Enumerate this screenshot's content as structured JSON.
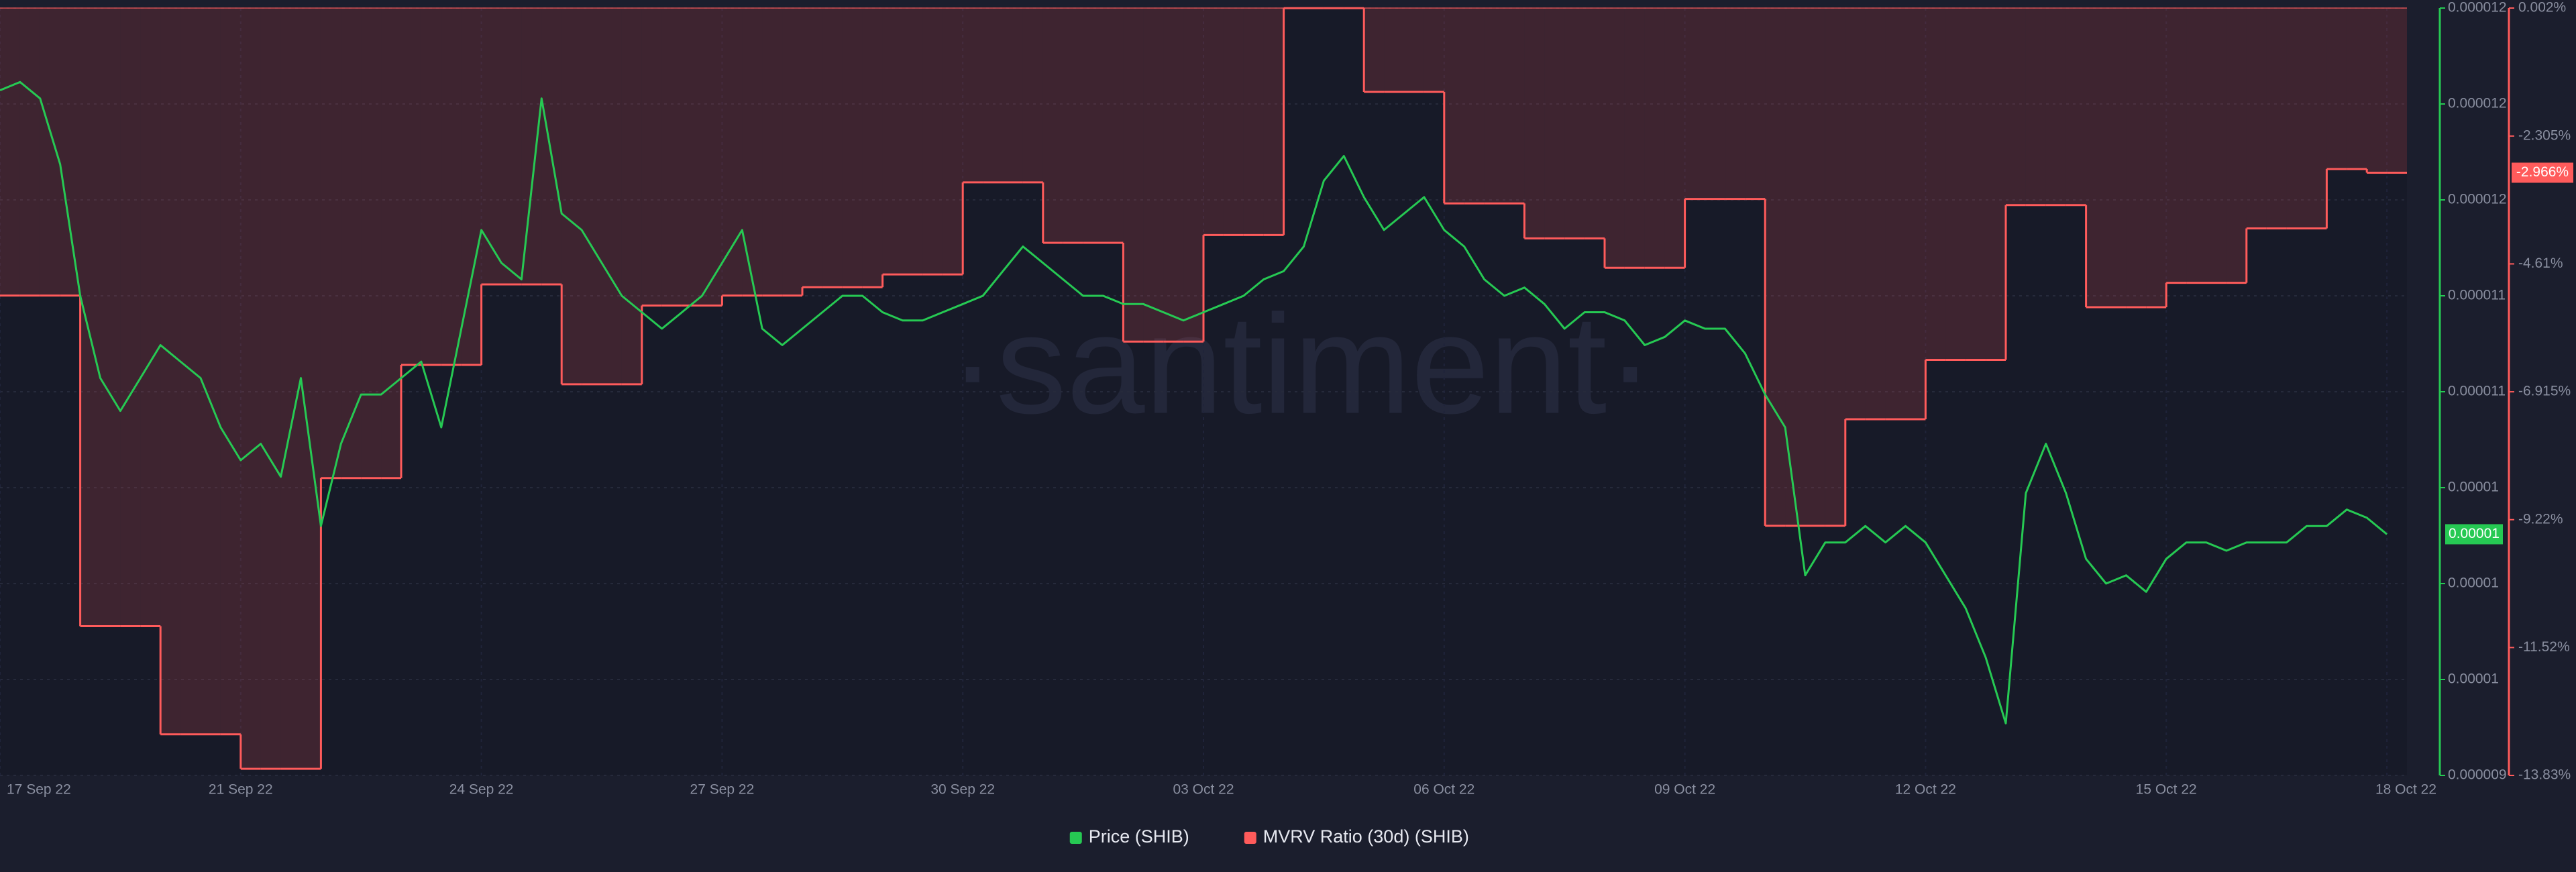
{
  "chart_data": {
    "type": "line-step",
    "watermark": "·santiment·",
    "grid": true,
    "categories": [
      "17 Sep 22",
      null,
      null,
      null,
      null,
      null,
      null,
      null,
      null,
      null,
      null,
      null,
      "21 Sep 22",
      null,
      null,
      null,
      null,
      null,
      null,
      null,
      null,
      null,
      null,
      null,
      "24 Sep 22",
      null,
      null,
      null,
      null,
      null,
      null,
      null,
      null,
      null,
      null,
      null,
      "27 Sep 22",
      null,
      null,
      null,
      null,
      null,
      null,
      null,
      null,
      null,
      null,
      null,
      "30 Sep 22",
      null,
      null,
      null,
      null,
      null,
      null,
      null,
      null,
      null,
      null,
      null,
      "03 Oct 22",
      null,
      null,
      null,
      null,
      null,
      null,
      null,
      null,
      null,
      null,
      null,
      "06 Oct 22",
      null,
      null,
      null,
      null,
      null,
      null,
      null,
      null,
      null,
      null,
      null,
      "09 Oct 22",
      null,
      null,
      null,
      null,
      null,
      null,
      null,
      null,
      null,
      null,
      null,
      "12 Oct 22",
      null,
      null,
      null,
      null,
      null,
      null,
      null,
      null,
      null,
      null,
      null,
      "15 Oct 22",
      null,
      null,
      null,
      null,
      null,
      null,
      null,
      null,
      null,
      null,
      "18 Oct 22"
    ],
    "ylim": [
      9.4e-06,
      1.22e-05
    ],
    "yticks": [
      {
        "value": 9.4e-06,
        "label": "0.000009"
      },
      {
        "value": 9.75e-06,
        "label": "0.00001"
      },
      {
        "value": 1.01e-05,
        "label": "0.00001"
      },
      {
        "value": 1.045e-05,
        "label": "0.00001"
      },
      {
        "value": 1.08e-05,
        "label": "0.000011"
      },
      {
        "value": 1.115e-05,
        "label": "0.000011"
      },
      {
        "value": 1.15e-05,
        "label": "0.000012"
      },
      {
        "value": 1.185e-05,
        "label": "0.000012"
      },
      {
        "value": 1.22e-05,
        "label": "0.000012"
      }
    ],
    "y2lim": [
      -13.83,
      0.002
    ],
    "y2ticks": [
      {
        "value": -13.83,
        "label": "-13.83%"
      },
      {
        "value": -11.525,
        "label": "-11.52%"
      },
      {
        "value": -9.22,
        "label": "-9.22%"
      },
      {
        "value": -6.915,
        "label": "-6.915%"
      },
      {
        "value": -4.61,
        "label": "-4.61%"
      },
      {
        "value": -2.305,
        "label": "-2.305%"
      },
      {
        "value": 0.002,
        "label": "0.002%"
      }
    ],
    "series": [
      {
        "name": "Price (SHIB)",
        "color": "#26c953",
        "axis": "y",
        "current": {
          "value": 1.028e-05,
          "label": "0.00001"
        },
        "values": [
          1.19e-05,
          1.193e-05,
          1.187e-05,
          1.163e-05,
          1.115e-05,
          1.085e-05,
          1.073e-05,
          1.085e-05,
          1.097e-05,
          1.091e-05,
          1.085e-05,
          1.067e-05,
          1.055e-05,
          1.061e-05,
          1.049e-05,
          1.085e-05,
          1.031e-05,
          1.061e-05,
          1.079e-05,
          1.079e-05,
          1.085e-05,
          1.091e-05,
          1.067e-05,
          1.103e-05,
          1.139e-05,
          1.127e-05,
          1.121e-05,
          1.187e-05,
          1.145e-05,
          1.139e-05,
          1.127e-05,
          1.115e-05,
          1.109e-05,
          1.103e-05,
          1.109e-05,
          1.115e-05,
          1.127e-05,
          1.139e-05,
          1.103e-05,
          1.097e-05,
          1.103e-05,
          1.109e-05,
          1.115e-05,
          1.115e-05,
          1.109e-05,
          1.106e-05,
          1.106e-05,
          1.109e-05,
          1.112e-05,
          1.115e-05,
          1.124e-05,
          1.133e-05,
          1.127e-05,
          1.121e-05,
          1.115e-05,
          1.115e-05,
          1.112e-05,
          1.112e-05,
          1.109e-05,
          1.106e-05,
          1.109e-05,
          1.112e-05,
          1.115e-05,
          1.121e-05,
          1.124e-05,
          1.133e-05,
          1.157e-05,
          1.166e-05,
          1.151e-05,
          1.139e-05,
          1.145e-05,
          1.151e-05,
          1.139e-05,
          1.133e-05,
          1.121e-05,
          1.115e-05,
          1.118e-05,
          1.112e-05,
          1.103e-05,
          1.109e-05,
          1.109e-05,
          1.106e-05,
          1.097e-05,
          1.1e-05,
          1.106e-05,
          1.103e-05,
          1.103e-05,
          1.094e-05,
          1.079e-05,
          1.067e-05,
          1.013e-05,
          1.025e-05,
          1.025e-05,
          1.031e-05,
          1.025e-05,
          1.031e-05,
          1.025e-05,
          1.013e-05,
          1.001e-05,
          9.83e-06,
          9.59e-06,
          1.043e-05,
          1.061e-05,
          1.043e-05,
          1.019e-05,
          1.01e-05,
          1.013e-05,
          1.007e-05,
          1.019e-05,
          1.025e-05,
          1.025e-05,
          1.022e-05,
          1.025e-05,
          1.025e-05,
          1.025e-05,
          1.031e-05,
          1.031e-05,
          1.037e-05,
          1.034e-05,
          1.028e-05
        ]
      },
      {
        "name": "MVRV Ratio (30d) (SHIB)",
        "color": "#ff5b5b",
        "axis": "y2",
        "current": {
          "value": -2.966,
          "label": "-2.966%"
        },
        "values": [
          -5.18,
          -5.18,
          -5.18,
          -5.18,
          -11.14,
          -11.14,
          -11.14,
          -11.14,
          -13.09,
          -13.09,
          -13.09,
          -13.09,
          -13.71,
          -13.71,
          -13.71,
          -13.71,
          -8.47,
          -8.47,
          -8.47,
          -8.47,
          -6.43,
          -6.43,
          -6.43,
          -6.43,
          -4.98,
          -4.98,
          -4.98,
          -4.98,
          -6.78,
          -6.78,
          -6.78,
          -6.78,
          -5.36,
          -5.36,
          -5.36,
          -5.36,
          -5.18,
          -5.18,
          -5.18,
          -5.18,
          -5.03,
          -5.03,
          -5.03,
          -5.03,
          -4.8,
          -4.8,
          -4.8,
          -4.8,
          -3.14,
          -3.14,
          -3.14,
          -3.14,
          -4.23,
          -4.23,
          -4.23,
          -4.23,
          -6.01,
          -6.01,
          -6.01,
          -6.01,
          -4.09,
          -4.09,
          -4.09,
          -4.09,
          0.0,
          0.0,
          0.0,
          0.0,
          -1.51,
          -1.51,
          -1.51,
          -1.51,
          -3.52,
          -3.52,
          -3.52,
          -3.52,
          -4.15,
          -4.15,
          -4.15,
          -4.15,
          -4.68,
          -4.68,
          -4.68,
          -4.68,
          -3.44,
          -3.44,
          -3.44,
          -3.44,
          -9.33,
          -9.33,
          -9.33,
          -9.33,
          -7.41,
          -7.41,
          -7.41,
          -7.41,
          -6.34,
          -6.34,
          -6.34,
          -6.34,
          -3.55,
          -3.55,
          -3.55,
          -3.55,
          -5.39,
          -5.39,
          -5.39,
          -5.39,
          -4.95,
          -4.95,
          -4.95,
          -4.95,
          -3.97,
          -3.97,
          -3.97,
          -3.97,
          -2.9,
          -2.9,
          -2.966,
          -2.966
        ]
      }
    ]
  }
}
